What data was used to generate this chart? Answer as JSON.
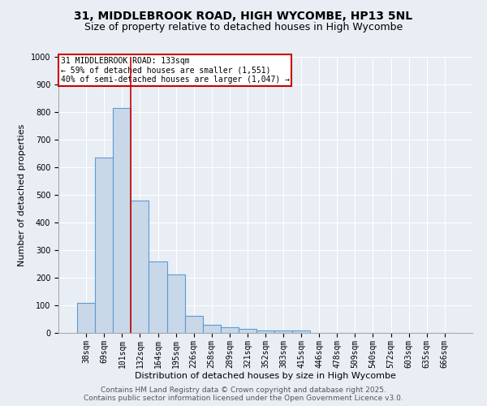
{
  "title1": "31, MIDDLEBROOK ROAD, HIGH WYCOMBE, HP13 5NL",
  "title2": "Size of property relative to detached houses in High Wycombe",
  "xlabel": "Distribution of detached houses by size in High Wycombe",
  "ylabel": "Number of detached properties",
  "categories": [
    "38sqm",
    "69sqm",
    "101sqm",
    "132sqm",
    "164sqm",
    "195sqm",
    "226sqm",
    "258sqm",
    "289sqm",
    "321sqm",
    "352sqm",
    "383sqm",
    "415sqm",
    "446sqm",
    "478sqm",
    "509sqm",
    "540sqm",
    "572sqm",
    "603sqm",
    "635sqm",
    "666sqm"
  ],
  "values": [
    110,
    635,
    815,
    480,
    258,
    213,
    63,
    28,
    20,
    15,
    10,
    8,
    10,
    0,
    0,
    0,
    0,
    0,
    0,
    0,
    0
  ],
  "bar_color": "#c8d8e8",
  "bar_edge_color": "#5b9bd5",
  "bar_edge_width": 0.8,
  "red_line_x": 2.5,
  "annotation_text": "31 MIDDLEBROOK ROAD: 133sqm\n← 59% of detached houses are smaller (1,551)\n40% of semi-detached houses are larger (1,047) →",
  "annotation_box_color": "#ffffff",
  "annotation_box_edge_color": "#cc0000",
  "ylim": [
    0,
    1000
  ],
  "yticks": [
    0,
    100,
    200,
    300,
    400,
    500,
    600,
    700,
    800,
    900,
    1000
  ],
  "background_color": "#e8eef4",
  "plot_bg_color": "#e8eef4",
  "footer1": "Contains HM Land Registry data © Crown copyright and database right 2025.",
  "footer2": "Contains public sector information licensed under the Open Government Licence v3.0.",
  "title1_fontsize": 10,
  "title2_fontsize": 9,
  "xlabel_fontsize": 8,
  "ylabel_fontsize": 8,
  "tick_fontsize": 7,
  "footer_fontsize": 6.5,
  "annotation_fontsize": 7
}
